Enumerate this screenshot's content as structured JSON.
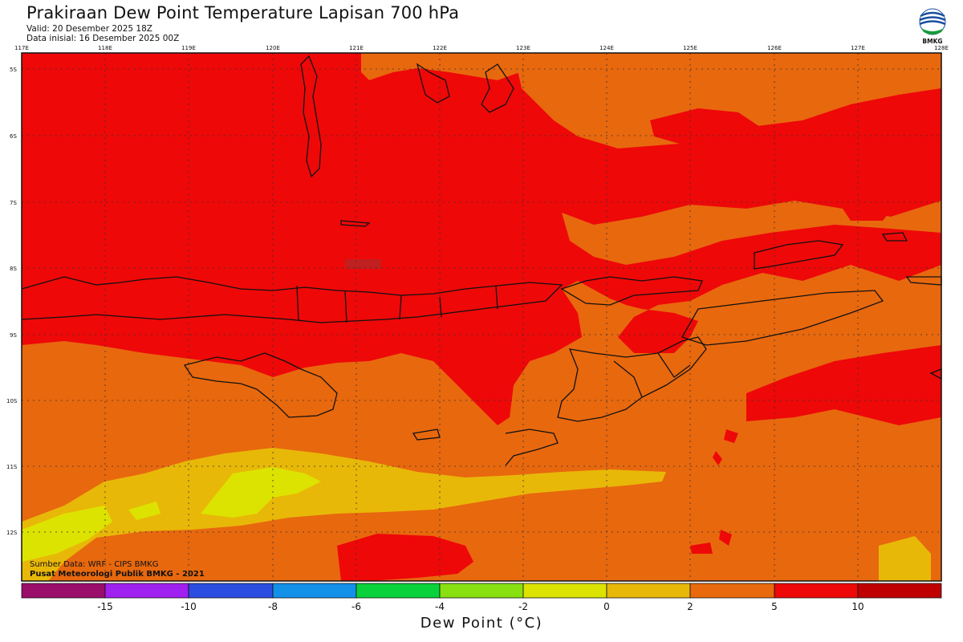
{
  "header": {
    "title": "Prakiraan Dew Point Temperature Lapisan 700 hPa",
    "valid": "Valid: 20 Desember 2025 18Z",
    "init": "Data inisial: 16 Desember 2025 00Z",
    "logo_text": "BMKG"
  },
  "map": {
    "lon_labels": [
      "117E",
      "118E",
      "119E",
      "120E",
      "121E",
      "122E",
      "123E",
      "124E",
      "125E",
      "126E",
      "127E",
      "128E"
    ],
    "lat_labels": [
      "5S",
      "6S",
      "7S",
      "8S",
      "9S",
      "10S",
      "11S",
      "12S"
    ],
    "credits": {
      "source": "Sumber Data: WRF - CIPS BMKG",
      "org": "Pusat Meteorologi Publik BMKG - 2021"
    }
  },
  "legend": {
    "colors": [
      "#9a0d6a",
      "#a020ef",
      "#2c4ee0",
      "#1390e8",
      "#0ad23a",
      "#88e010",
      "#dde300",
      "#e8b808",
      "#e86a0c",
      "#ee0808",
      "#c00000"
    ],
    "labels": [
      "-15",
      "-10",
      "-8",
      "-6",
      "-4",
      "-2",
      "0",
      "2",
      "5",
      "10"
    ],
    "axis_title": "Dew Point (°C)"
  },
  "colors": {
    "red": "#ee0808",
    "orange": "#e8680e",
    "amber": "#e8b808",
    "yellow": "#dde300",
    "dark_red": "#c02020"
  }
}
